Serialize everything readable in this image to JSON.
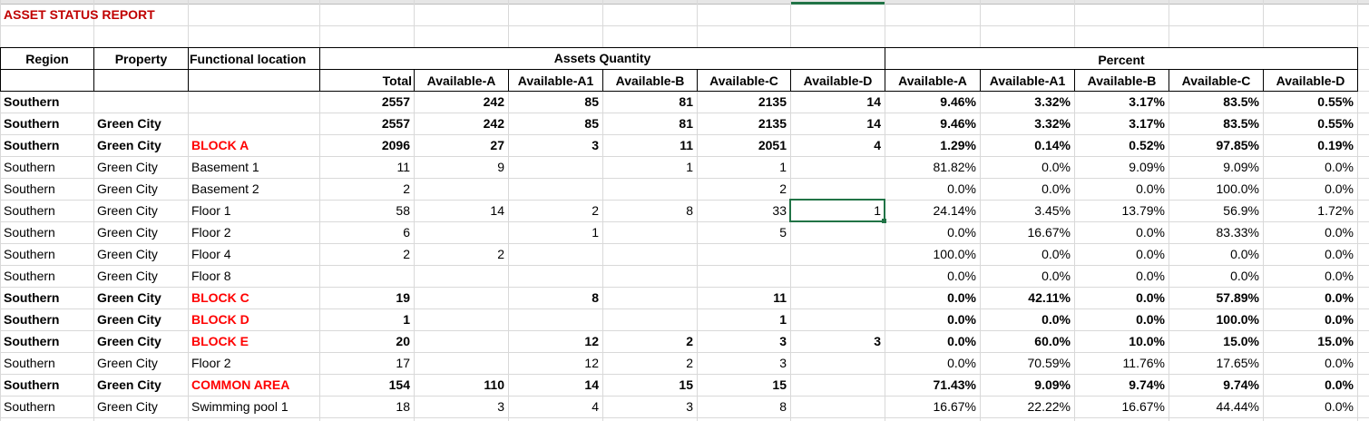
{
  "title": "ASSET STATUS REPORT",
  "headers": {
    "region": "Region",
    "property": "Property",
    "functional_location": "Functional location",
    "assets_quantity": "Assets Quantity",
    "percent": "Percent",
    "quantity_columns": [
      "Total",
      "Available-A",
      "Available-A1",
      "Available-B",
      "Available-C",
      "Available-D"
    ],
    "percent_columns": [
      "Available-A",
      "Available-A1",
      "Available-B",
      "Available-C",
      "Available-D"
    ]
  },
  "colors": {
    "title": "#c00000",
    "block_label": "#ff0000",
    "selection": "#217346"
  },
  "selected_cell": {
    "row": 5,
    "column": "Available-D"
  },
  "rows": [
    {
      "bold": true,
      "red": false,
      "cells": [
        "Southern",
        "",
        "",
        "2557",
        "242",
        "85",
        "81",
        "2135",
        "14",
        "9.46%",
        "3.32%",
        "3.17%",
        "83.5%",
        "0.55%"
      ]
    },
    {
      "bold": true,
      "red": false,
      "cells": [
        "Southern",
        "Green City",
        "",
        "2557",
        "242",
        "85",
        "81",
        "2135",
        "14",
        "9.46%",
        "3.32%",
        "3.17%",
        "83.5%",
        "0.55%"
      ]
    },
    {
      "bold": true,
      "red": true,
      "cells": [
        "Southern",
        "Green City",
        "BLOCK A",
        "2096",
        "27",
        "3",
        "11",
        "2051",
        "4",
        "1.29%",
        "0.14%",
        "0.52%",
        "97.85%",
        "0.19%"
      ]
    },
    {
      "bold": false,
      "red": false,
      "cells": [
        "Southern",
        "Green City",
        "Basement 1",
        "11",
        "9",
        "",
        "1",
        "1",
        "",
        "81.82%",
        "0.0%",
        "9.09%",
        "9.09%",
        "0.0%"
      ]
    },
    {
      "bold": false,
      "red": false,
      "cells": [
        "Southern",
        "Green City",
        "Basement 2",
        "2",
        "",
        "",
        "",
        "2",
        "",
        "0.0%",
        "0.0%",
        "0.0%",
        "100.0%",
        "0.0%"
      ]
    },
    {
      "bold": false,
      "red": false,
      "cells": [
        "Southern",
        "Green City",
        "Floor 1",
        "58",
        "14",
        "2",
        "8",
        "33",
        "1",
        "24.14%",
        "3.45%",
        "13.79%",
        "56.9%",
        "1.72%"
      ]
    },
    {
      "bold": false,
      "red": false,
      "cells": [
        "Southern",
        "Green City",
        "Floor 2",
        "6",
        "",
        "1",
        "",
        "5",
        "",
        "0.0%",
        "16.67%",
        "0.0%",
        "83.33%",
        "0.0%"
      ]
    },
    {
      "bold": false,
      "red": false,
      "cells": [
        "Southern",
        "Green City",
        "Floor 4",
        "2",
        "2",
        "",
        "",
        "",
        "",
        "100.0%",
        "0.0%",
        "0.0%",
        "0.0%",
        "0.0%"
      ]
    },
    {
      "bold": false,
      "red": false,
      "cells": [
        "Southern",
        "Green City",
        "Floor 8",
        "",
        "",
        "",
        "",
        "",
        "",
        "0.0%",
        "0.0%",
        "0.0%",
        "0.0%",
        "0.0%"
      ]
    },
    {
      "bold": true,
      "red": true,
      "cells": [
        "Southern",
        "Green City",
        "BLOCK C",
        "19",
        "",
        "8",
        "",
        "11",
        "",
        "0.0%",
        "42.11%",
        "0.0%",
        "57.89%",
        "0.0%"
      ]
    },
    {
      "bold": true,
      "red": true,
      "cells": [
        "Southern",
        "Green City",
        "BLOCK D",
        "1",
        "",
        "",
        "",
        "1",
        "",
        "0.0%",
        "0.0%",
        "0.0%",
        "100.0%",
        "0.0%"
      ]
    },
    {
      "bold": true,
      "red": true,
      "cells": [
        "Southern",
        "Green City",
        "BLOCK E",
        "20",
        "",
        "12",
        "2",
        "3",
        "3",
        "0.0%",
        "60.0%",
        "10.0%",
        "15.0%",
        "15.0%"
      ]
    },
    {
      "bold": false,
      "red": false,
      "cells": [
        "Southern",
        "Green City",
        "Floor 2",
        "17",
        "",
        "12",
        "2",
        "3",
        "",
        "0.0%",
        "70.59%",
        "11.76%",
        "17.65%",
        "0.0%"
      ]
    },
    {
      "bold": true,
      "red": true,
      "cells": [
        "Southern",
        "Green City",
        "COMMON AREA",
        "154",
        "110",
        "14",
        "15",
        "15",
        "",
        "71.43%",
        "9.09%",
        "9.74%",
        "9.74%",
        "0.0%"
      ]
    },
    {
      "bold": false,
      "red": false,
      "cells": [
        "Southern",
        "Green City",
        "Swimming pool 1",
        "18",
        "3",
        "4",
        "3",
        "8",
        "",
        "16.67%",
        "22.22%",
        "16.67%",
        "44.44%",
        "0.0%"
      ]
    }
  ]
}
